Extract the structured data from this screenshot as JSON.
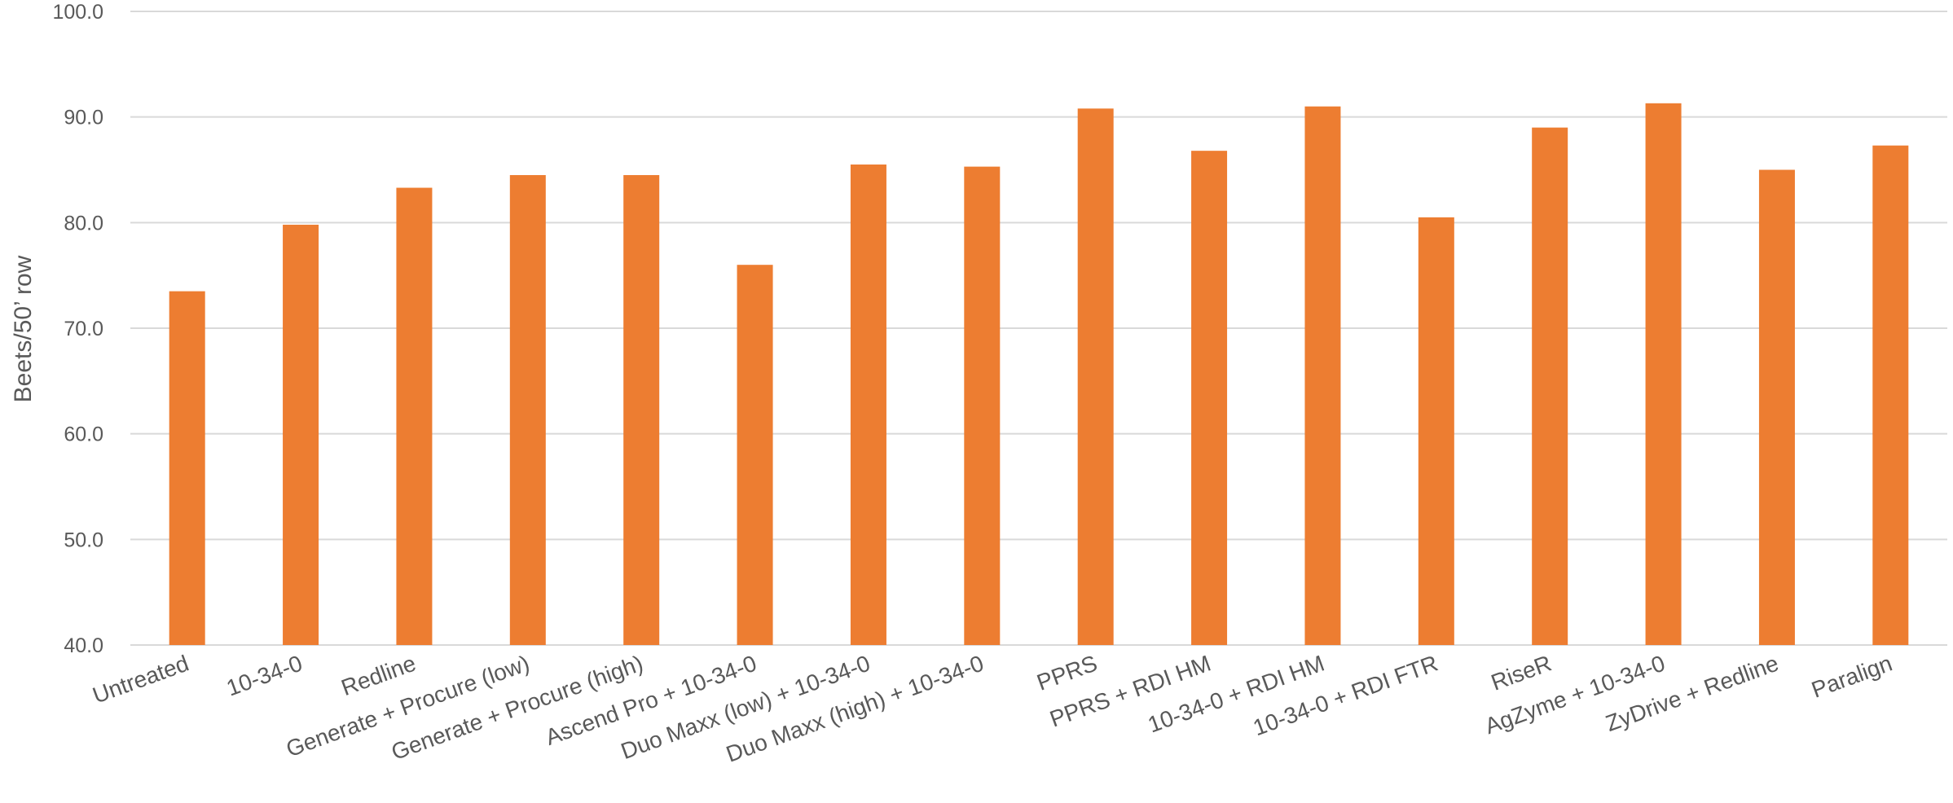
{
  "chart_data": {
    "type": "bar",
    "title": "",
    "xlabel": "",
    "ylabel": "Beets/50’ row",
    "ylim": [
      40,
      100
    ],
    "yticks": [
      "40.0",
      "50.0",
      "60.0",
      "70.0",
      "80.0",
      "90.0",
      "100.0"
    ],
    "ytick_values": [
      40,
      50,
      60,
      70,
      80,
      90,
      100
    ],
    "grid": true,
    "legend": "none",
    "bar_color": "#ED7D31",
    "categories": [
      "Untreated",
      "10-34-0",
      "Redline",
      "Generate + Procure (low)",
      "Generate + Procure (high)",
      "Ascend Pro + 10-34-0",
      "Duo Maxx (low) + 10-34-0",
      "Duo Maxx (high) + 10-34-0",
      "PPRS",
      "PPRS + RDI HM",
      "10-34-0 + RDI HM",
      "10-34-0 + RDI FTR",
      "RiseR",
      "AgZyme + 10-34-0",
      "ZyDrive + Redline",
      "Paralign"
    ],
    "values": [
      73.5,
      79.8,
      83.3,
      84.5,
      84.5,
      76.0,
      85.5,
      85.3,
      90.8,
      86.8,
      91.0,
      80.5,
      89.0,
      91.3,
      85.0,
      87.3
    ]
  }
}
